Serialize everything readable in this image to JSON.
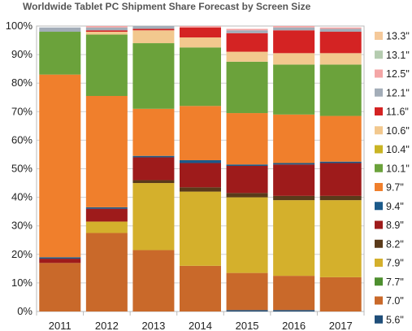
{
  "chart_data": {
    "type": "bar",
    "stacked": true,
    "title": "Worldwide Tablet PC Shipment Share Forecast by Screen Size",
    "categories": [
      "2011",
      "2012",
      "2013",
      "2014",
      "2015",
      "2016",
      "2017"
    ],
    "ylim": [
      0,
      100
    ],
    "yticks": [
      "0%",
      "10%",
      "20%",
      "30%",
      "40%",
      "50%",
      "60%",
      "70%",
      "80%",
      "90%",
      "100%"
    ],
    "grid": true,
    "legend_position": "right",
    "series": [
      {
        "name": "5.6\"",
        "color": "#1f4e79",
        "values": [
          0,
          0,
          0,
          0,
          0.5,
          0.5,
          0
        ]
      },
      {
        "name": "7.0\"",
        "color": "#c9692a",
        "values": [
          17,
          27.5,
          21.5,
          16,
          13,
          12,
          12
        ]
      },
      {
        "name": "7.7\"",
        "color": "#4e8f2f",
        "values": [
          0,
          0,
          0,
          0,
          0,
          0,
          0
        ]
      },
      {
        "name": "7.9\"",
        "color": "#d4b02c",
        "values": [
          0,
          4,
          23.5,
          26,
          26.5,
          26.5,
          27
        ]
      },
      {
        "name": "8.2\"",
        "color": "#5a3a1a",
        "values": [
          0,
          0,
          1,
          1.5,
          1.5,
          1.5,
          1.5
        ]
      },
      {
        "name": "8.9\"",
        "color": "#9e1b1b",
        "values": [
          1.5,
          4.5,
          8,
          8.5,
          9.5,
          11,
          11.5
        ]
      },
      {
        "name": "9.4\"",
        "color": "#1c5a8a",
        "values": [
          0.5,
          0.5,
          0.5,
          1,
          0.5,
          0.5,
          0.5
        ]
      },
      {
        "name": "9.7\"",
        "color": "#f07f2c",
        "values": [
          64,
          39,
          16.5,
          19,
          18,
          17,
          16
        ]
      },
      {
        "name": "10.1\"",
        "color": "#6ba23b",
        "values": [
          15,
          21.5,
          23,
          20.5,
          18,
          17.5,
          18
        ]
      },
      {
        "name": "10.4\"",
        "color": "#c9b424",
        "values": [
          0,
          0,
          0,
          0,
          0,
          0,
          0
        ]
      },
      {
        "name": "10.6\"",
        "color": "#f2c88e",
        "values": [
          0,
          1,
          4.5,
          3.5,
          3.5,
          4,
          4
        ]
      },
      {
        "name": "11.6\"",
        "color": "#d42323",
        "values": [
          0,
          0.5,
          0.5,
          3.5,
          6.5,
          8,
          7.5
        ]
      },
      {
        "name": "12.1\"",
        "color": "#a3adb8",
        "values": [
          1.5,
          1,
          1,
          0,
          1,
          1,
          1
        ]
      },
      {
        "name": "12.5\"",
        "color": "#f4a6a6",
        "values": [
          0,
          0.5,
          0,
          0.5,
          0.5,
          0.5,
          0.5
        ]
      },
      {
        "name": "13.1\"",
        "color": "#b5ccb0",
        "values": [
          0,
          0,
          0,
          0,
          0,
          0,
          0
        ]
      },
      {
        "name": "13.3\"",
        "color": "#f5c99a",
        "values": [
          0,
          0,
          0,
          0,
          0,
          0,
          0
        ]
      }
    ]
  }
}
